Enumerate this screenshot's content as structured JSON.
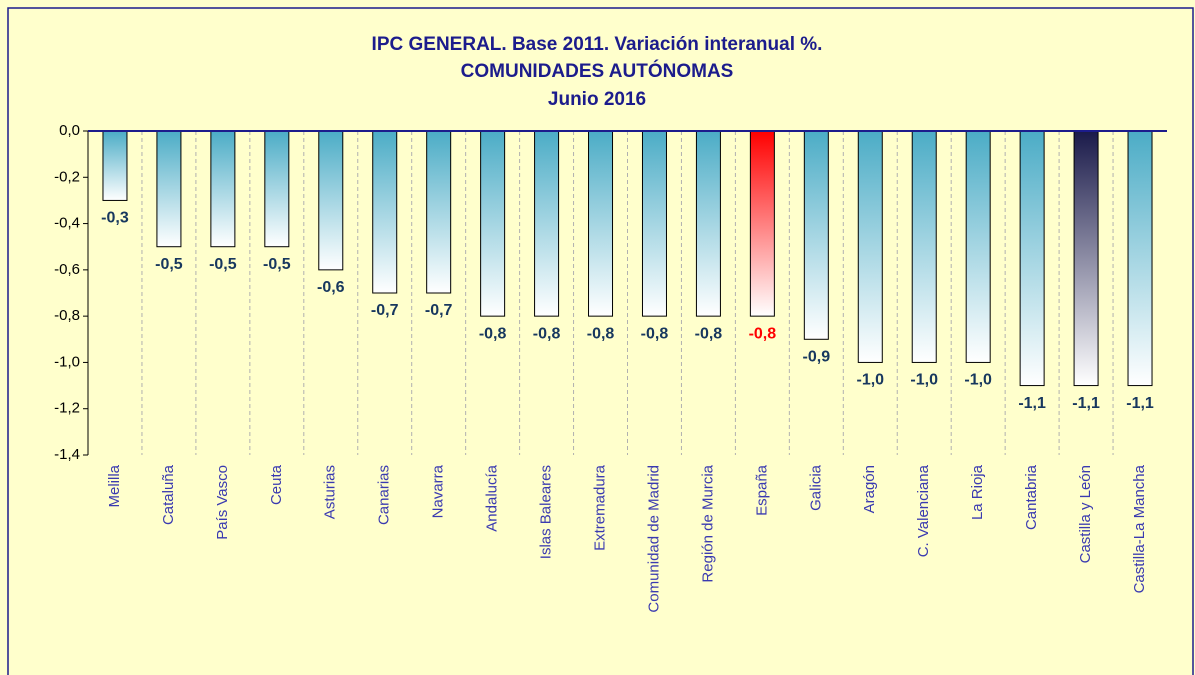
{
  "chart_data": {
    "type": "bar",
    "title": "IPC GENERAL.  Base 2011. Variación interanual %.",
    "subtitle": "COMUNIDADES  AUTÓNOMAS",
    "date": "Junio 2016",
    "categories": [
      "Melilla",
      "Cataluña",
      "País Vasco",
      "Ceuta",
      "Asturias",
      "Canarias",
      "Navarra",
      "Andalucía",
      "Islas Baleares",
      "Extremadura",
      "Comunidad de Madrid",
      "Región de Murcia",
      "España",
      "Galicia",
      "Aragón",
      "C. Valenciana",
      "La Rioja",
      "Cantabria",
      "Castilla y León",
      "Castilla-La Mancha"
    ],
    "values": [
      -0.3,
      -0.5,
      -0.5,
      -0.5,
      -0.6,
      -0.7,
      -0.7,
      -0.8,
      -0.8,
      -0.8,
      -0.8,
      -0.8,
      -0.8,
      -0.9,
      -1.0,
      -1.0,
      -1.0,
      -1.1,
      -1.1,
      -1.1
    ],
    "value_labels": [
      "-0,3",
      "-0,5",
      "-0,5",
      "-0,5",
      "-0,6",
      "-0,7",
      "-0,7",
      "-0,8",
      "-0,8",
      "-0,8",
      "-0,8",
      "-0,8",
      "-0,8",
      "-0,9",
      "-1,0",
      "-1,0",
      "-1,0",
      "-1,1",
      "-1,1",
      "-1,1"
    ],
    "colors": [
      "#4bacc6",
      "#4bacc6",
      "#4bacc6",
      "#4bacc6",
      "#4bacc6",
      "#4bacc6",
      "#4bacc6",
      "#4bacc6",
      "#4bacc6",
      "#4bacc6",
      "#4bacc6",
      "#4bacc6",
      "#ff0000",
      "#4bacc6",
      "#4bacc6",
      "#4bacc6",
      "#4bacc6",
      "#4bacc6",
      "#1a1a4a",
      "#4bacc6"
    ],
    "label_colors": [
      "#17375e",
      "#17375e",
      "#17375e",
      "#17375e",
      "#17375e",
      "#17375e",
      "#17375e",
      "#17375e",
      "#17375e",
      "#17375e",
      "#17375e",
      "#17375e",
      "#ff0000",
      "#17375e",
      "#17375e",
      "#17375e",
      "#17375e",
      "#17375e",
      "#17375e",
      "#17375e"
    ],
    "ylim": [
      -1.4,
      0
    ],
    "yticks": [
      {
        "value": 0,
        "label": "0,0"
      },
      {
        "value": -0.2,
        "label": "-0,2"
      },
      {
        "value": -0.4,
        "label": "-0,4"
      },
      {
        "value": -0.6,
        "label": "-0,6"
      },
      {
        "value": -0.8,
        "label": "-0,8"
      },
      {
        "value": -1.0,
        "label": "-1,0"
      },
      {
        "value": -1.2,
        "label": "-1,2"
      },
      {
        "value": -1.4,
        "label": "-1,4"
      }
    ],
    "grid": true
  }
}
